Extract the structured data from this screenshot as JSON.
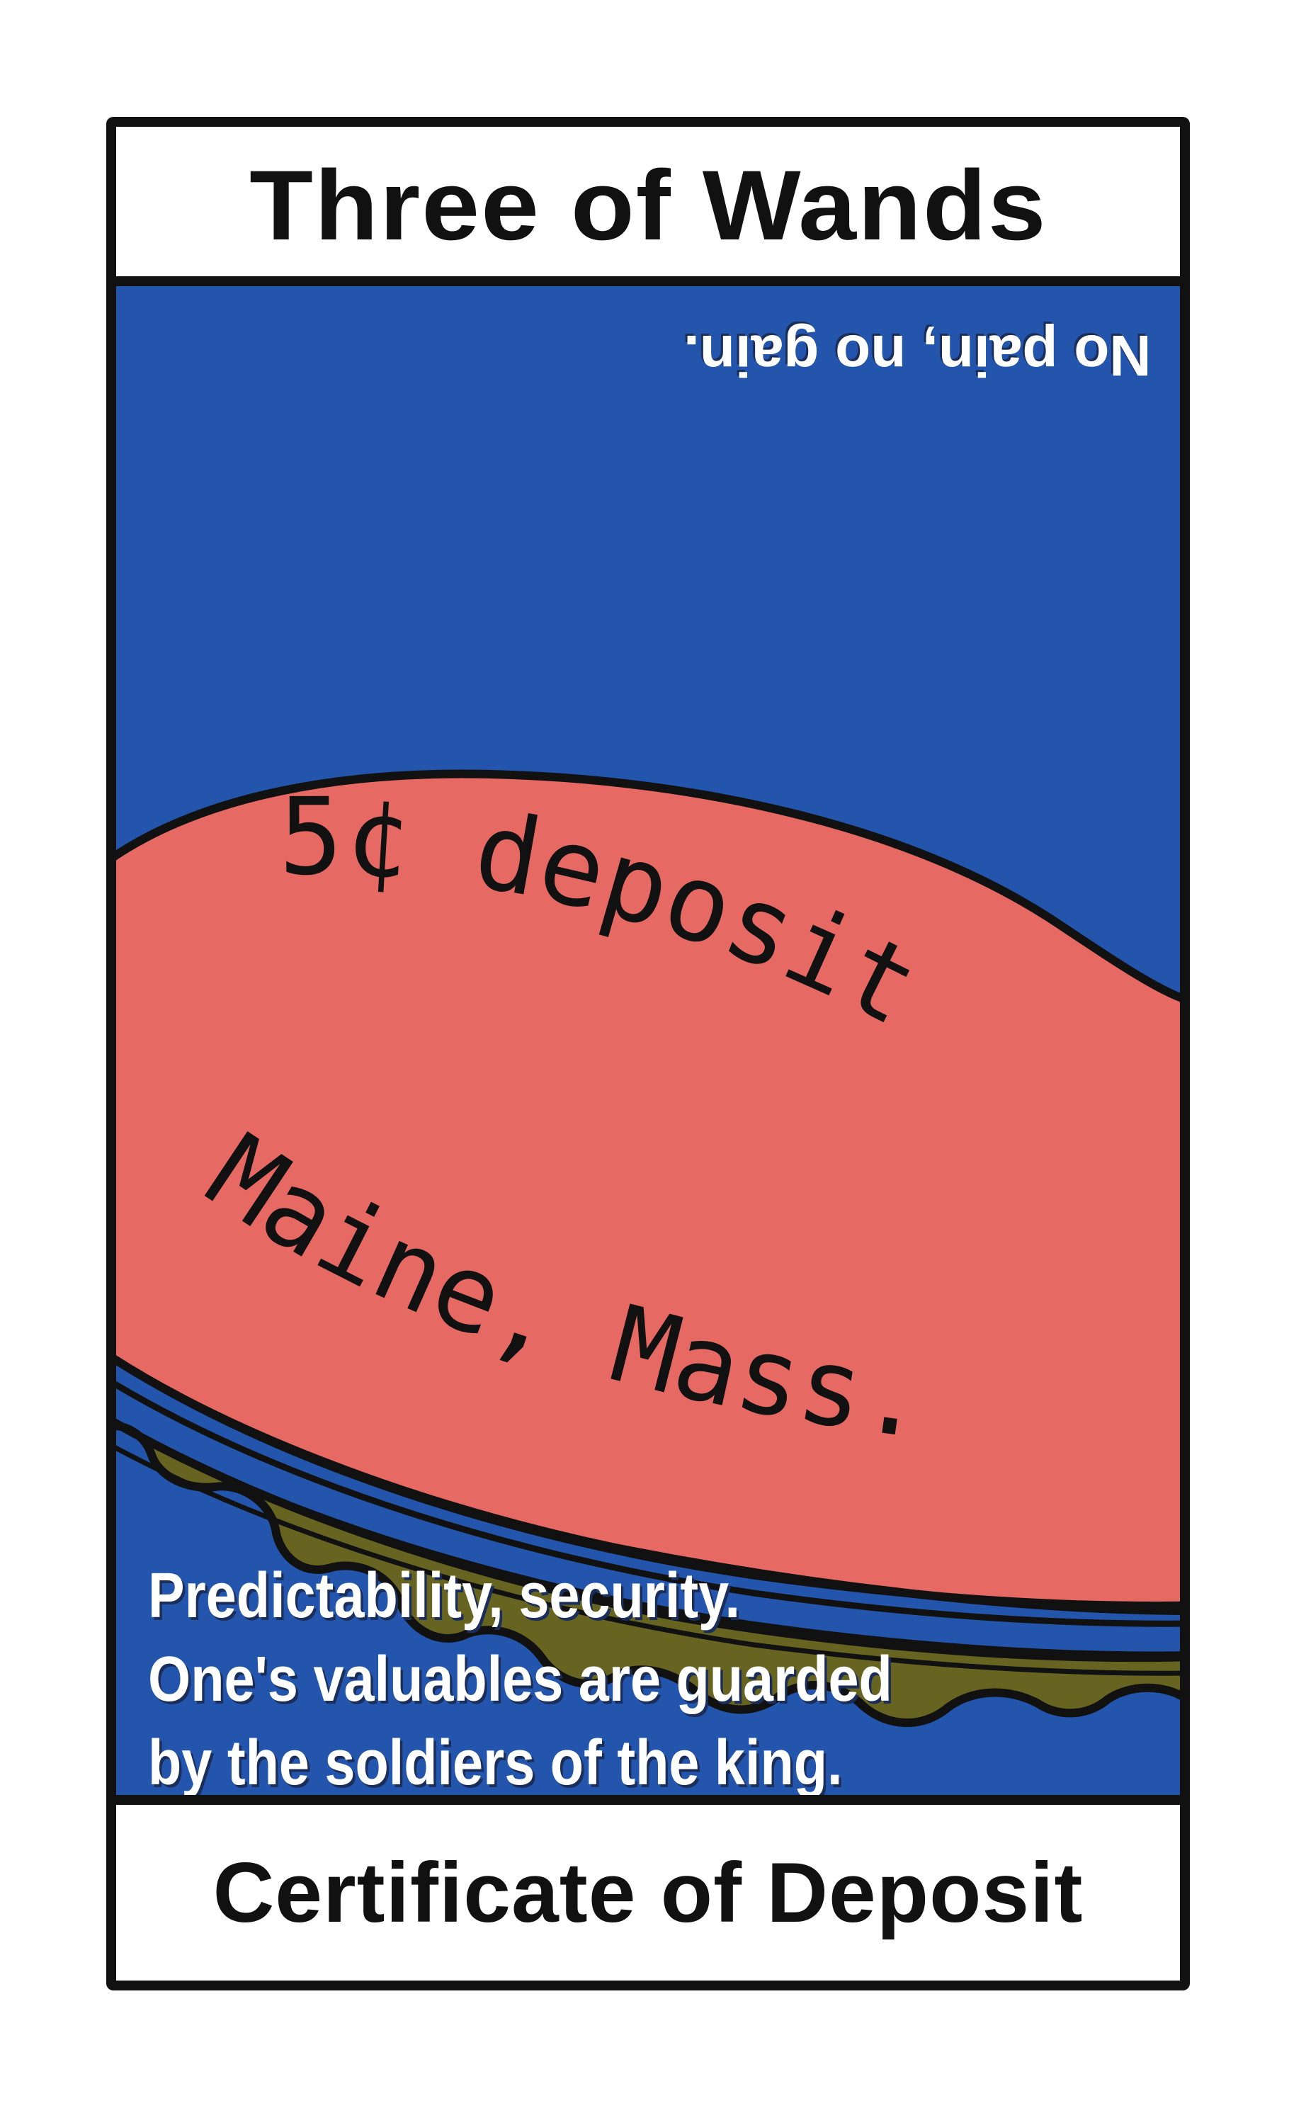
{
  "card": {
    "title": "Three of Wands",
    "name": "Certificate of Deposit",
    "inverted_motto": "No pain, no gain.",
    "meaning_lines": [
      "Predictability, security.",
      "One's valuables are guarded",
      "by the soldiers of the king."
    ],
    "bottle_cap": {
      "line1": "5¢ deposit",
      "line2": "Maine, Mass."
    }
  },
  "colors": {
    "sky_blue": "#2355ac",
    "cap_pink": "#e66a63",
    "cap_rim_olive": "#676421",
    "outline": "#111111",
    "band_white": "#ffffff"
  }
}
